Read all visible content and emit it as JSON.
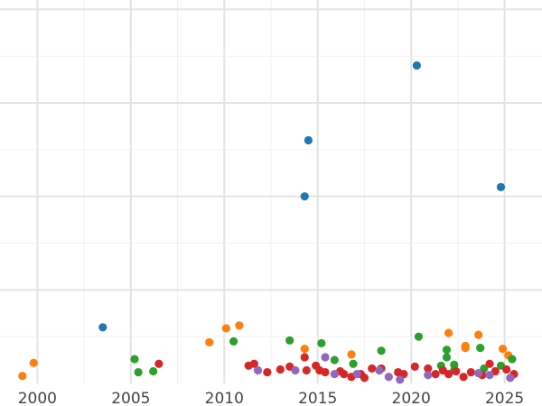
{
  "colors": {
    "blue": "#1f77b4",
    "orange": "#ff7f0e",
    "green": "#2ca02c",
    "red": "#d62728",
    "purple": "#9467bd"
  },
  "chart_data": {
    "type": "scatter",
    "title": "",
    "xlabel": "",
    "ylabel": "",
    "xlim": [
      1998,
      2027
    ],
    "ylim": [
      0,
      4.1
    ],
    "x_ticks": [
      2000,
      2005,
      2010,
      2015,
      2020,
      2025
    ],
    "x_tick_labels": [
      "2000",
      "2005",
      "2010",
      "2015",
      "2020",
      "2025"
    ],
    "y_gridlines": [
      1,
      2,
      3,
      4
    ],
    "grid": true,
    "legend": "none",
    "series": [
      {
        "color": "#1f77b4",
        "points": [
          [
            2003.5,
            0.6
          ],
          [
            2014.3,
            2.0
          ],
          [
            2014.5,
            2.6
          ],
          [
            2020.3,
            3.4
          ],
          [
            2024.8,
            2.1
          ]
        ]
      },
      {
        "color": "#ff7f0e",
        "points": [
          [
            1999.2,
            0.08
          ],
          [
            1999.8,
            0.22
          ],
          [
            2009.2,
            0.44
          ],
          [
            2010.1,
            0.59
          ],
          [
            2010.8,
            0.62
          ],
          [
            2014.3,
            0.37
          ],
          [
            2016.8,
            0.31
          ],
          [
            2022.0,
            0.54
          ],
          [
            2022.9,
            0.38
          ],
          [
            2022.9,
            0.4
          ],
          [
            2023.6,
            0.52
          ],
          [
            2024.9,
            0.37
          ],
          [
            2025.2,
            0.3
          ]
        ]
      },
      {
        "color": "#2ca02c",
        "points": [
          [
            2005.2,
            0.26
          ],
          [
            2005.4,
            0.12
          ],
          [
            2006.2,
            0.13
          ],
          [
            2010.5,
            0.45
          ],
          [
            2013.5,
            0.46
          ],
          [
            2015.2,
            0.43
          ],
          [
            2015.9,
            0.25
          ],
          [
            2016.9,
            0.21
          ],
          [
            2018.4,
            0.35
          ],
          [
            2020.4,
            0.5
          ],
          [
            2021.6,
            0.19
          ],
          [
            2021.9,
            0.36
          ],
          [
            2021.9,
            0.28
          ],
          [
            2022.3,
            0.2
          ],
          [
            2022.3,
            0.14
          ],
          [
            2023.7,
            0.38
          ],
          [
            2023.9,
            0.16
          ],
          [
            2024.8,
            0.19
          ],
          [
            2025.4,
            0.26
          ]
        ]
      },
      {
        "color": "#d62728",
        "points": [
          [
            2006.5,
            0.21
          ],
          [
            2011.3,
            0.19
          ],
          [
            2011.6,
            0.21
          ],
          [
            2012.3,
            0.12
          ],
          [
            2013.0,
            0.15
          ],
          [
            2013.5,
            0.18
          ],
          [
            2014.3,
            0.28
          ],
          [
            2014.4,
            0.14
          ],
          [
            2014.9,
            0.19
          ],
          [
            2015.1,
            0.14
          ],
          [
            2015.4,
            0.12
          ],
          [
            2016.2,
            0.13
          ],
          [
            2016.4,
            0.1
          ],
          [
            2016.8,
            0.07
          ],
          [
            2017.3,
            0.1
          ],
          [
            2017.5,
            0.06
          ],
          [
            2017.9,
            0.16
          ],
          [
            2018.4,
            0.16
          ],
          [
            2019.3,
            0.12
          ],
          [
            2019.6,
            0.1
          ],
          [
            2020.2,
            0.18
          ],
          [
            2020.9,
            0.16
          ],
          [
            2021.3,
            0.1
          ],
          [
            2021.7,
            0.14
          ],
          [
            2022.0,
            0.1
          ],
          [
            2022.4,
            0.13
          ],
          [
            2022.8,
            0.07
          ],
          [
            2023.2,
            0.12
          ],
          [
            2023.8,
            0.09
          ],
          [
            2024.2,
            0.21
          ],
          [
            2024.5,
            0.13
          ],
          [
            2025.1,
            0.15
          ],
          [
            2025.5,
            0.1
          ]
        ]
      },
      {
        "color": "#9467bd",
        "points": [
          [
            2011.8,
            0.14
          ],
          [
            2013.8,
            0.14
          ],
          [
            2015.4,
            0.28
          ],
          [
            2015.9,
            0.1
          ],
          [
            2017.1,
            0.1
          ],
          [
            2018.3,
            0.14
          ],
          [
            2018.8,
            0.07
          ],
          [
            2019.4,
            0.04
          ],
          [
            2020.9,
            0.09
          ],
          [
            2023.6,
            0.11
          ],
          [
            2024.2,
            0.09
          ],
          [
            2025.3,
            0.06
          ]
        ]
      }
    ]
  }
}
